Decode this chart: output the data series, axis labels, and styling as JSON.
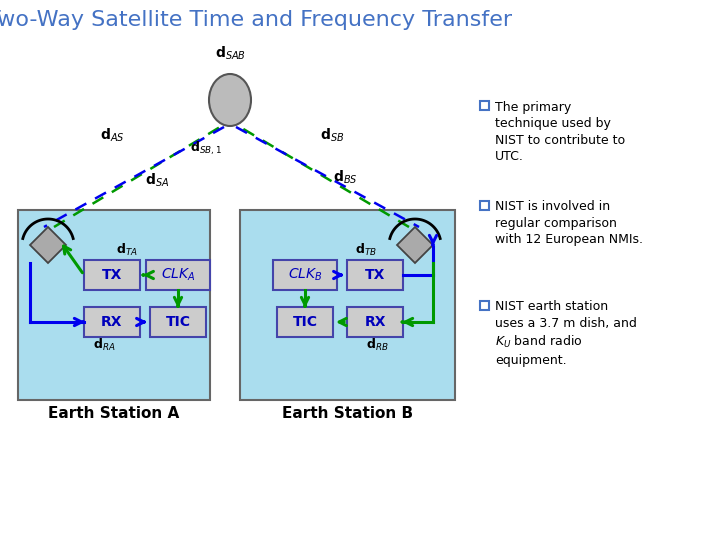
{
  "title": "Two-Way Satellite Time and Frequency Transfer",
  "title_color": "#4472C4",
  "title_fontsize": 16,
  "bg_color": "#FFFFFF",
  "station_bg": "#AADDEE",
  "bullet_color": "#4472C4",
  "bullets": [
    "The primary\ntechnique used by\nNIST to contribute to\nUTC.",
    "NIST is involved in\nregular comparison\nwith 12 European NMIs.",
    "NIST earth station\nuses a 3.7 m dish, and\nK$_U$ band radio\nequipment."
  ],
  "blue": "#0000EE",
  "green": "#009900",
  "box_fill": "#CCCCCC",
  "box_edge": "#4444AA",
  "box_text": "#0000BB",
  "sat_fill": "#BBBBBB",
  "ant_fill": "#AAAAAA",
  "label_fs": 9
}
